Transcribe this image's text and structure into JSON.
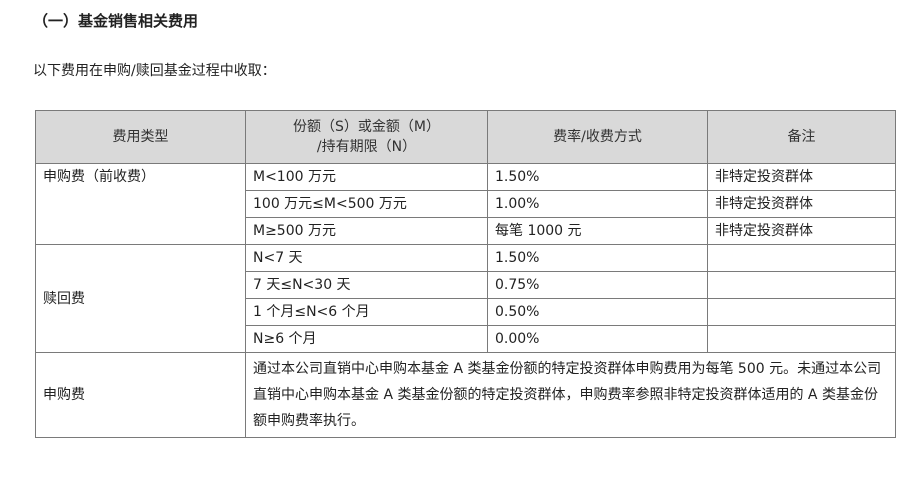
{
  "title": "（一）基金销售相关费用",
  "intro": "以下费用在申购/赎回基金过程中收取：",
  "table": {
    "headers": [
      "费用类型",
      "份额（S）或金额（M）/持有期限（N）",
      "费率/收费方式",
      "备注"
    ],
    "header_col2_line1": "份额（S）或金额（M）",
    "header_col2_line2": "/持有期限（N）",
    "purchase": {
      "type": "申购费（前收费）",
      "rows": [
        {
          "range": "M<100 万元",
          "rate": "1.50%",
          "note": "非特定投资群体"
        },
        {
          "range": "100 万元≤M<500 万元",
          "rate": "1.00%",
          "note": "非特定投资群体"
        },
        {
          "range": "M≥500 万元",
          "rate": "每笔 1000 元",
          "note": "非特定投资群体"
        }
      ]
    },
    "redemption": {
      "type": "赎回费",
      "rows": [
        {
          "range": "N<7 天",
          "rate": "1.50%",
          "note": ""
        },
        {
          "range": "7 天≤N<30 天",
          "rate": "0.75%",
          "note": ""
        },
        {
          "range": "1 个月≤N<6 个月",
          "rate": "0.50%",
          "note": ""
        },
        {
          "range": "N≥6 个月",
          "rate": "0.00%",
          "note": ""
        }
      ]
    },
    "special": {
      "type": "申购费",
      "text": "通过本公司直销中心申购本基金 A 类基金份额的特定投资群体申购费用为每笔 500 元。未通过本公司直销中心申购本基金 A 类基金份额的特定投资群体，申购费率参照非特定投资群体适用的 A 类基金份额申购费率执行。"
    }
  }
}
